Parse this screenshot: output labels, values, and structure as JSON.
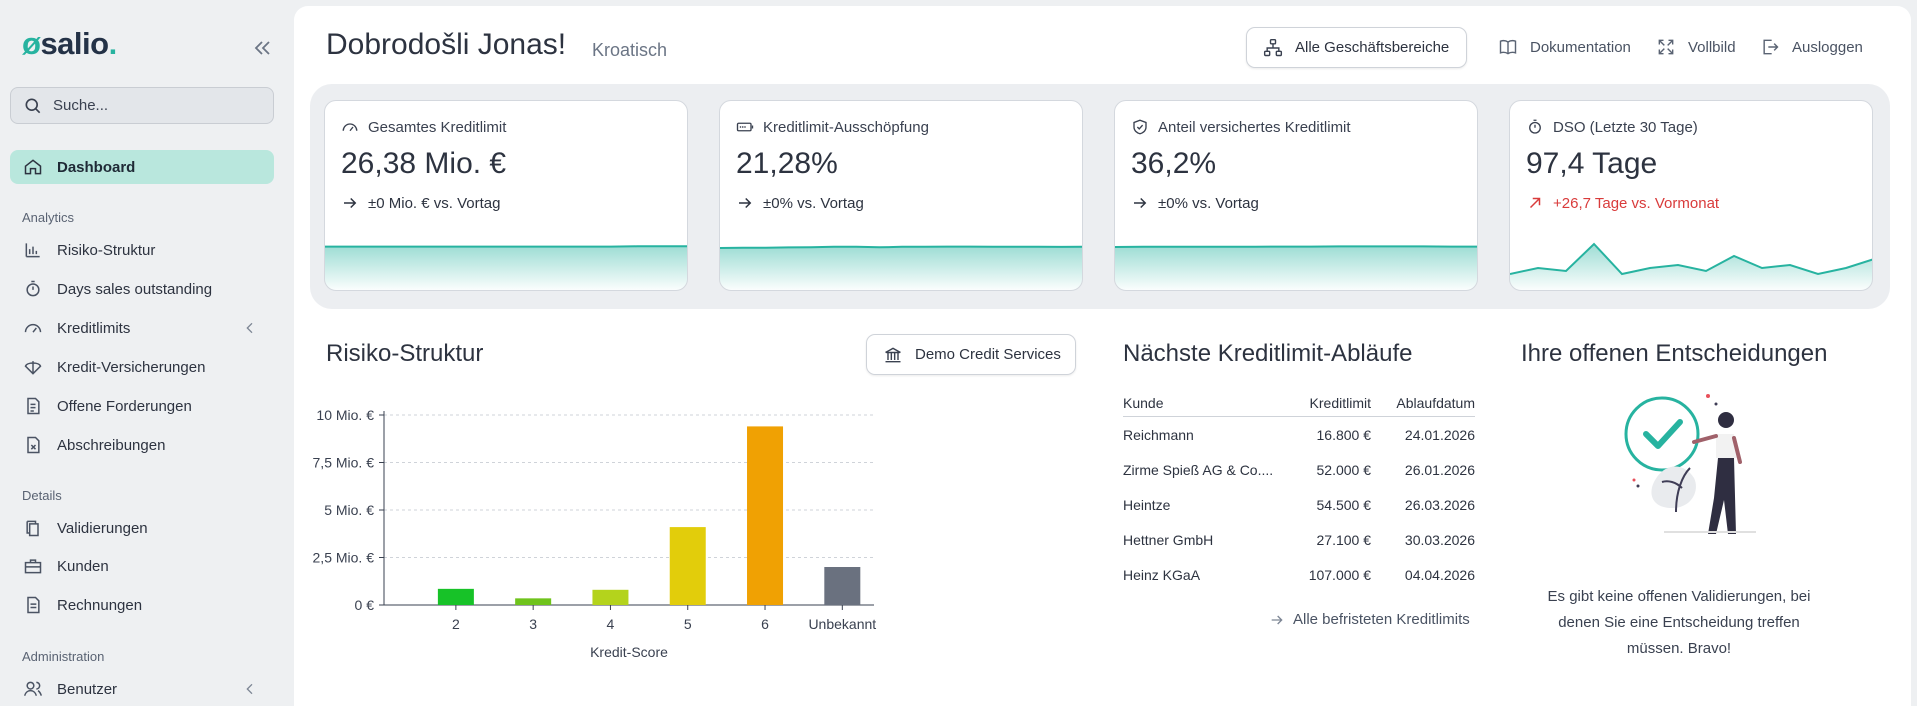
{
  "app": {
    "logo_text": "salio",
    "logo_dot": "."
  },
  "sidebar": {
    "search_placeholder": "Suche...",
    "dashboard": "Dashboard",
    "sections": {
      "analytics": "Analytics",
      "details": "Details",
      "administration": "Administration"
    },
    "analytics_items": [
      {
        "label": "Risiko-Struktur",
        "icon": "bar-chart-icon"
      },
      {
        "label": "Days sales outstanding",
        "icon": "stopwatch-icon"
      },
      {
        "label": "Kreditlimits",
        "icon": "gauge-icon"
      },
      {
        "label": "Kredit-Versicherungen",
        "icon": "umbrella-icon"
      },
      {
        "label": "Offene Forderungen",
        "icon": "invoice-list-icon"
      },
      {
        "label": "Abschreibungen",
        "icon": "document-x-icon"
      }
    ],
    "details_items": [
      {
        "label": "Validierungen",
        "icon": "copy-icon"
      },
      {
        "label": "Kunden",
        "icon": "briefcase-icon"
      },
      {
        "label": "Rechnungen",
        "icon": "document-icon"
      }
    ],
    "admin_items": [
      {
        "label": "Benutzer",
        "icon": "users-icon"
      }
    ]
  },
  "header": {
    "greeting": "Dobrodošli Jonas!",
    "language": "Kroatisch",
    "business_button": "Alle Geschäftsbereiche",
    "links": {
      "documentation": "Dokumentation",
      "fullscreen": "Vollbild",
      "logout": "Ausloggen"
    }
  },
  "kpis": [
    {
      "title": "Gesamtes Kreditlimit",
      "value": "26,38 Mio. €",
      "delta": "±0 Mio. € vs. Vortag",
      "trend": "flat",
      "icon": "gauge-icon"
    },
    {
      "title": "Kreditlimit-Ausschöpfung",
      "value": "21,28%",
      "delta": "±0% vs. Vortag",
      "trend": "flat",
      "icon": "battery-icon"
    },
    {
      "title": "Anteil versichertes Kreditlimit",
      "value": "36,2%",
      "delta": "±0% vs. Vortag",
      "trend": "flat",
      "icon": "shield-check-icon"
    },
    {
      "title": "DSO (Letzte 30 Tage)",
      "value": "97,4 Tage",
      "delta": "+26,7 Tage vs. Vormonat",
      "trend": "up",
      "icon": "stopwatch-icon"
    }
  ],
  "sparklines": [
    [
      0.12,
      0.12,
      0.12,
      0.12,
      0.12,
      0.12,
      0.12,
      0.12,
      0.12,
      0.12,
      0.12,
      0.12,
      0.14,
      0.14,
      0.14
    ],
    [
      0.0,
      0.02,
      0.02,
      0.05,
      0.06,
      0.1,
      0.1,
      0.06,
      0.1,
      0.1,
      0.12,
      0.12,
      0.11,
      0.1,
      0.1,
      0.09,
      0.1
    ],
    [
      0.08,
      0.1,
      0.1,
      0.11,
      0.11,
      0.11,
      0.12,
      0.12,
      0.13,
      0.13,
      0.13,
      0.13,
      0.12,
      0.12
    ],
    [
      0.0,
      0.2,
      0.1,
      1.0,
      0.0,
      0.2,
      0.3,
      0.1,
      0.6,
      0.2,
      0.3,
      0.0,
      0.2,
      0.5
    ]
  ],
  "risk": {
    "title": "Risiko-Struktur",
    "filter_button": "Demo Credit Services"
  },
  "chart_data": {
    "type": "bar",
    "categories": [
      "2",
      "3",
      "4",
      "5",
      "6",
      "Unbekannt"
    ],
    "values": [
      0.85,
      0.35,
      0.8,
      4.1,
      9.4,
      2.0
    ],
    "colors": [
      "#17c228",
      "#6fc31c",
      "#b4d31c",
      "#e2cd0b",
      "#f0a103",
      "#6a717f"
    ],
    "xlabel": "Kredit-Score",
    "ylabel": "",
    "ylim": [
      0,
      10
    ],
    "yticks": [
      0,
      2.5,
      5,
      7.5,
      10
    ],
    "ytick_labels": [
      "0 €",
      "2,5 Mio. €",
      "5 Mio. €",
      "7,5 Mio. €",
      "10 Mio. €"
    ],
    "grid": true
  },
  "expiry": {
    "title": "Nächste Kreditlimit-Abläufe",
    "columns": [
      "Kunde",
      "Kreditlimit",
      "Ablaufdatum"
    ],
    "rows": [
      {
        "customer": "Reichmann",
        "limit": "16.800 €",
        "date": "24.01.2026"
      },
      {
        "customer": "Zirme Spieß AG & Co....",
        "limit": "52.000 €",
        "date": "26.01.2026"
      },
      {
        "customer": "Heintze",
        "limit": "54.500 €",
        "date": "26.03.2026"
      },
      {
        "customer": "Hettner GmbH",
        "limit": "27.100 €",
        "date": "30.03.2026"
      },
      {
        "customer": "Heinz KGaA",
        "limit": "107.000 €",
        "date": "04.04.2026"
      }
    ],
    "all_link": "Alle befristeten Kreditlimits"
  },
  "decisions": {
    "title": "Ihre offenen Entscheidungen",
    "empty_text": "Es gibt keine offenen Validierungen, bei denen Sie eine Entscheidung treffen müssen. Bravo!"
  },
  "colors": {
    "accent": "#27b3a0",
    "active_bg": "#b9e7dd",
    "negative": "#d93b3b"
  }
}
